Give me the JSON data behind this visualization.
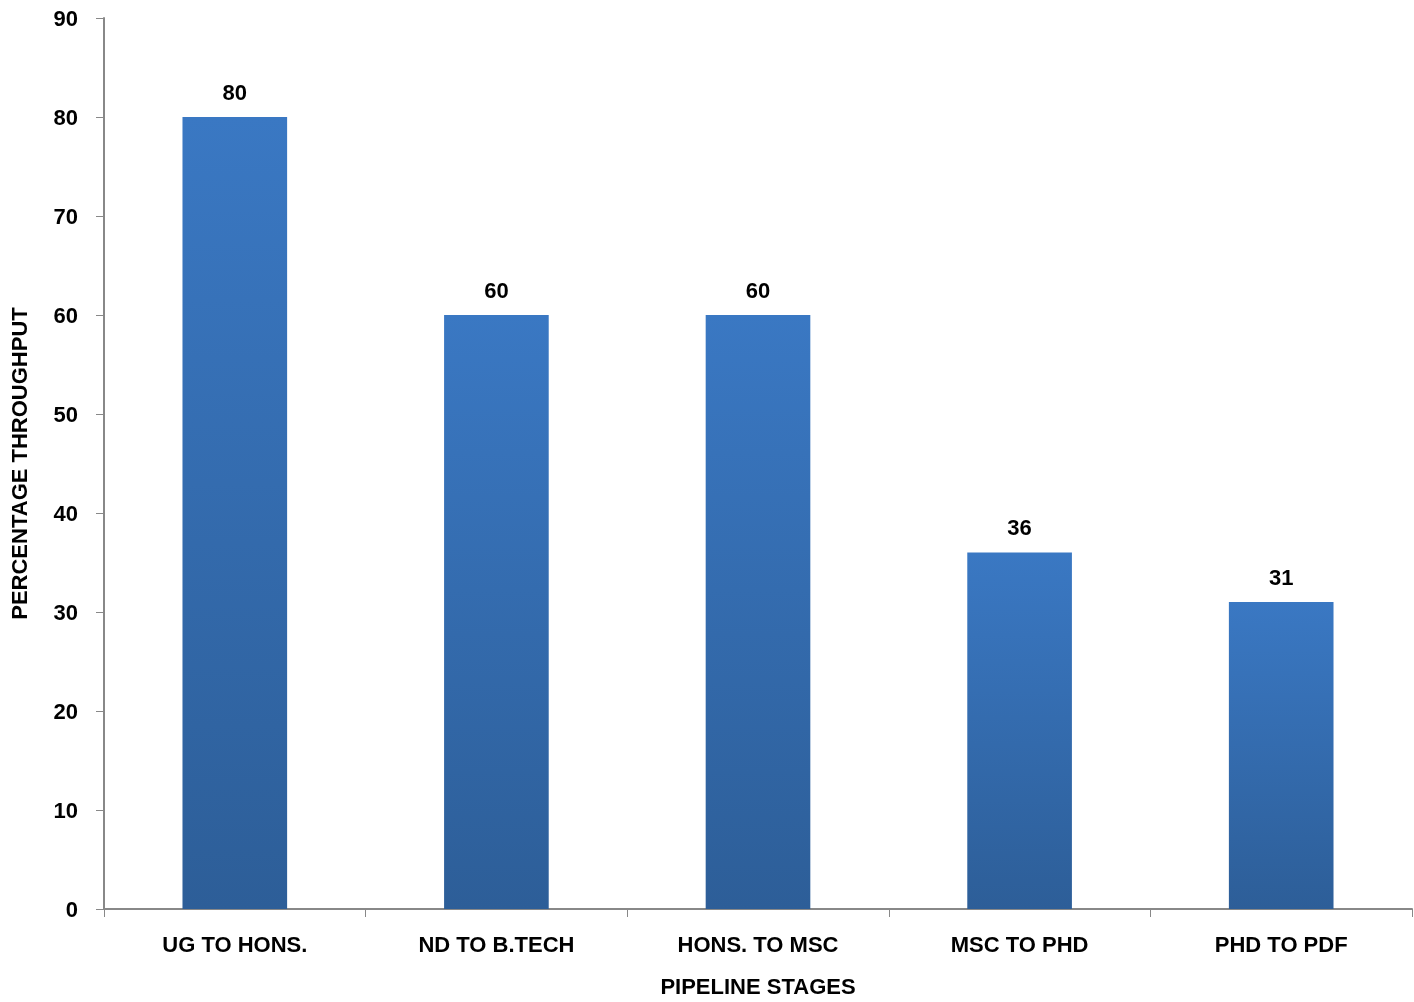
{
  "chart_data": {
    "type": "bar",
    "xlabel": "PIPELINE STAGES",
    "ylabel": "PERCENTAGE THROUGHPUT",
    "categories": [
      "UG TO HONS.",
      "ND TO B.TECH",
      "HONS. TO MSC",
      "MSC TO PHD",
      "PHD TO PDF"
    ],
    "values": [
      80,
      60,
      60,
      36,
      31
    ],
    "color": "#3a78c3",
    "ylim": [
      0,
      90
    ],
    "yticks": [
      0,
      10,
      20,
      30,
      40,
      50,
      60,
      70,
      80,
      90
    ],
    "grid": false,
    "data_labels": true
  }
}
